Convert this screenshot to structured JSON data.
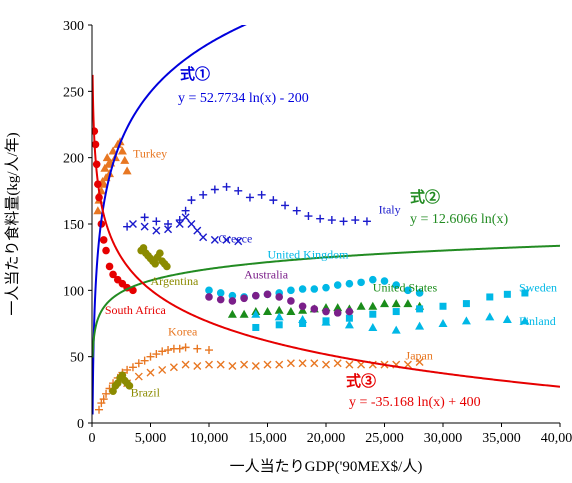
{
  "chart_data": {
    "type": "scatter",
    "xlabel": "一人当たりGDP('90MEX$/人)",
    "ylabel": "一人当たり食料量(kg/人/年)",
    "xlim": [
      0,
      40000
    ],
    "ylim": [
      0,
      300
    ],
    "x_ticks": [
      0,
      5000,
      10000,
      15000,
      20000,
      25000,
      30000,
      35000,
      40000
    ],
    "x_tick_labels": [
      "0",
      "5,000",
      "10,000",
      "15,000",
      "20,000",
      "25,000",
      "30,000",
      "35,000",
      "40,000"
    ],
    "y_ticks": [
      0,
      50,
      100,
      150,
      200,
      250,
      300
    ],
    "y_tick_labels": [
      "0",
      "50",
      "100",
      "150",
      "200",
      "250",
      "300"
    ],
    "grid": false,
    "legend": "none",
    "trend_lines": [
      {
        "label": "式①",
        "equation": "y = 52.7734 ln(x) - 200",
        "a": 52.7734,
        "b": -200,
        "color": "#0000dd"
      },
      {
        "label": "式②",
        "equation": "y = 12.6066 ln(x)",
        "a": 12.6066,
        "b": 0,
        "color": "#228b22"
      },
      {
        "label": "式③",
        "equation": "y = -35.168 ln(x) + 400",
        "a": -35.168,
        "b": 400,
        "color": "#e60000"
      }
    ],
    "series": [
      {
        "name": "Italy",
        "color": "#1a1acc",
        "marker": "plus",
        "points": [
          [
            3000,
            148
          ],
          [
            4500,
            155
          ],
          [
            5500,
            152
          ],
          [
            6500,
            150
          ],
          [
            7500,
            153
          ],
          [
            8000,
            160
          ],
          [
            8500,
            168
          ],
          [
            9500,
            172
          ],
          [
            10500,
            176
          ],
          [
            11500,
            178
          ],
          [
            12500,
            175
          ],
          [
            13500,
            170
          ],
          [
            14500,
            172
          ],
          [
            15500,
            168
          ],
          [
            16500,
            164
          ],
          [
            17500,
            160
          ],
          [
            18500,
            156
          ],
          [
            19500,
            154
          ],
          [
            20500,
            153
          ],
          [
            21500,
            152
          ],
          [
            22500,
            153
          ],
          [
            23500,
            152
          ]
        ]
      },
      {
        "name": "Greece",
        "color": "#1a1acc",
        "marker": "x",
        "points": [
          [
            3500,
            150
          ],
          [
            4500,
            148
          ],
          [
            5500,
            145
          ],
          [
            6500,
            146
          ],
          [
            7500,
            150
          ],
          [
            8000,
            155
          ],
          [
            8500,
            150
          ],
          [
            9000,
            145
          ],
          [
            9500,
            140
          ],
          [
            10500,
            138
          ],
          [
            11500,
            138
          ],
          [
            12500,
            137
          ]
        ]
      },
      {
        "name": "United Kingdom",
        "color": "#00b8e6",
        "marker": "circle",
        "points": [
          [
            10000,
            100
          ],
          [
            11000,
            98
          ],
          [
            12000,
            96
          ],
          [
            13000,
            95
          ],
          [
            14000,
            96
          ],
          [
            15000,
            97
          ],
          [
            16000,
            98
          ],
          [
            17000,
            100
          ],
          [
            18000,
            101
          ],
          [
            19000,
            101
          ],
          [
            20000,
            102
          ],
          [
            21000,
            104
          ],
          [
            22000,
            105
          ],
          [
            23000,
            106
          ],
          [
            24000,
            108
          ],
          [
            25000,
            107
          ],
          [
            26000,
            104
          ],
          [
            27000,
            100
          ],
          [
            28000,
            98
          ]
        ]
      },
      {
        "name": "United States",
        "color": "#1a8c1a",
        "marker": "triangle",
        "points": [
          [
            12000,
            82
          ],
          [
            13000,
            82
          ],
          [
            14000,
            84
          ],
          [
            15000,
            84
          ],
          [
            16000,
            85
          ],
          [
            17000,
            84
          ],
          [
            18000,
            85
          ],
          [
            19000,
            86
          ],
          [
            20000,
            87
          ],
          [
            21000,
            87
          ],
          [
            22000,
            86
          ],
          [
            23000,
            88
          ],
          [
            24000,
            88
          ],
          [
            25000,
            90
          ],
          [
            26000,
            90
          ],
          [
            27000,
            90
          ],
          [
            28000,
            88
          ]
        ]
      },
      {
        "name": "Sweden",
        "color": "#00b8e6",
        "marker": "square",
        "points": [
          [
            14000,
            72
          ],
          [
            16000,
            74
          ],
          [
            18000,
            75
          ],
          [
            20000,
            77
          ],
          [
            22000,
            79
          ],
          [
            24000,
            82
          ],
          [
            26000,
            84
          ],
          [
            28000,
            86
          ],
          [
            30000,
            88
          ],
          [
            32000,
            90
          ],
          [
            34000,
            95
          ],
          [
            35500,
            97
          ],
          [
            37000,
            98
          ]
        ]
      },
      {
        "name": "Finland",
        "color": "#00b8e6",
        "marker": "triangle",
        "points": [
          [
            14000,
            82
          ],
          [
            16000,
            80
          ],
          [
            18000,
            78
          ],
          [
            20000,
            76
          ],
          [
            22000,
            74
          ],
          [
            24000,
            72
          ],
          [
            26000,
            70
          ],
          [
            28000,
            73
          ],
          [
            30000,
            75
          ],
          [
            32000,
            77
          ],
          [
            34000,
            80
          ],
          [
            35500,
            78
          ],
          [
            37000,
            77
          ]
        ]
      },
      {
        "name": "Australia",
        "color": "#7b1f8a",
        "marker": "circle",
        "points": [
          [
            10000,
            95
          ],
          [
            11000,
            93
          ],
          [
            12000,
            92
          ],
          [
            13000,
            94
          ],
          [
            14000,
            96
          ],
          [
            15000,
            97
          ],
          [
            16000,
            95
          ],
          [
            17000,
            92
          ],
          [
            18000,
            88
          ],
          [
            19000,
            86
          ],
          [
            20000,
            84
          ],
          [
            21000,
            83
          ],
          [
            22000,
            84
          ]
        ]
      },
      {
        "name": "Japan",
        "color": "#e87722",
        "marker": "x",
        "points": [
          [
            3000,
            30
          ],
          [
            4000,
            35
          ],
          [
            5000,
            38
          ],
          [
            6000,
            40
          ],
          [
            7000,
            42
          ],
          [
            8000,
            44
          ],
          [
            9000,
            43
          ],
          [
            10000,
            44
          ],
          [
            11000,
            44
          ],
          [
            12000,
            43
          ],
          [
            13000,
            44
          ],
          [
            14000,
            43
          ],
          [
            15000,
            44
          ],
          [
            16000,
            44
          ],
          [
            17000,
            45
          ],
          [
            18000,
            45
          ],
          [
            19000,
            45
          ],
          [
            20000,
            44
          ],
          [
            21000,
            45
          ],
          [
            22000,
            44
          ],
          [
            23000,
            44
          ],
          [
            24000,
            44
          ],
          [
            25000,
            44
          ],
          [
            26000,
            44
          ],
          [
            27000,
            44
          ],
          [
            28000,
            46
          ]
        ]
      },
      {
        "name": "Korea",
        "color": "#e87722",
        "marker": "plus",
        "points": [
          [
            600,
            10
          ],
          [
            800,
            15
          ],
          [
            1000,
            18
          ],
          [
            1200,
            22
          ],
          [
            1500,
            26
          ],
          [
            1800,
            30
          ],
          [
            2200,
            34
          ],
          [
            2600,
            38
          ],
          [
            3000,
            40
          ],
          [
            3500,
            42
          ],
          [
            4000,
            45
          ],
          [
            4500,
            47
          ],
          [
            5000,
            50
          ],
          [
            5500,
            52
          ],
          [
            6000,
            54
          ],
          [
            6500,
            55
          ],
          [
            7000,
            56
          ],
          [
            7500,
            56
          ],
          [
            8000,
            57
          ],
          [
            9000,
            56
          ],
          [
            10000,
            55
          ]
        ]
      },
      {
        "name": "Turkey",
        "color": "#e87722",
        "marker": "triangle",
        "points": [
          [
            500,
            160
          ],
          [
            600,
            168
          ],
          [
            800,
            175
          ],
          [
            900,
            182
          ],
          [
            1000,
            180
          ],
          [
            1100,
            192
          ],
          [
            1200,
            185
          ],
          [
            1300,
            200
          ],
          [
            1400,
            195
          ],
          [
            1500,
            188
          ],
          [
            1600,
            196
          ],
          [
            1800,
            205
          ],
          [
            2000,
            200
          ],
          [
            2200,
            210
          ],
          [
            2400,
            212
          ],
          [
            2600,
            205
          ],
          [
            2800,
            198
          ],
          [
            3000,
            190
          ]
        ]
      },
      {
        "name": "Argentina",
        "color": "#8b8b00",
        "marker": "circle",
        "points": [
          [
            4200,
            130
          ],
          [
            4400,
            132
          ],
          [
            4600,
            128
          ],
          [
            4800,
            126
          ],
          [
            5000,
            124
          ],
          [
            5200,
            122
          ],
          [
            5400,
            120
          ],
          [
            5600,
            125
          ],
          [
            5800,
            128
          ],
          [
            6000,
            122
          ],
          [
            6200,
            120
          ],
          [
            6400,
            118
          ]
        ]
      },
      {
        "name": "South Africa",
        "color": "#e60000",
        "marker": "circle",
        "points": [
          [
            200,
            220
          ],
          [
            300,
            210
          ],
          [
            400,
            195
          ],
          [
            500,
            180
          ],
          [
            600,
            170
          ],
          [
            800,
            150
          ],
          [
            1000,
            138
          ],
          [
            1200,
            130
          ],
          [
            1500,
            118
          ],
          [
            1800,
            112
          ],
          [
            2200,
            108
          ],
          [
            2600,
            105
          ],
          [
            3000,
            102
          ],
          [
            3500,
            100
          ]
        ]
      },
      {
        "name": "Brazil",
        "color": "#8b8b00",
        "marker": "circle",
        "points": [
          [
            1800,
            24
          ],
          [
            2000,
            28
          ],
          [
            2200,
            30
          ],
          [
            2400,
            34
          ],
          [
            2600,
            36
          ],
          [
            2800,
            32
          ],
          [
            3000,
            30
          ],
          [
            3200,
            28
          ]
        ]
      }
    ],
    "annotations": [
      {
        "text": "Turkey",
        "color": "#e87722",
        "x": 3500,
        "y": 200
      },
      {
        "text": "Italy",
        "color": "#1a1acc",
        "x": 24500,
        "y": 158
      },
      {
        "text": "Greece",
        "color": "#1a1acc",
        "x": 10800,
        "y": 136
      },
      {
        "text": "United Kingdom",
        "color": "#00b8e6",
        "x": 15000,
        "y": 124
      },
      {
        "text": "Australia",
        "color": "#7b1f8a",
        "x": 13000,
        "y": 109
      },
      {
        "text": "Argentina",
        "color": "#8b8b00",
        "x": 5000,
        "y": 104
      },
      {
        "text": "United States",
        "color": "#1a8c1a",
        "x": 24000,
        "y": 99
      },
      {
        "text": "Sweden",
        "color": "#00b8e6",
        "x": 36500,
        "y": 99
      },
      {
        "text": "Finland",
        "color": "#00b8e6",
        "x": 36500,
        "y": 74
      },
      {
        "text": "South Africa",
        "color": "#e60000",
        "x": 1100,
        "y": 82
      },
      {
        "text": "Korea",
        "color": "#e87722",
        "x": 6500,
        "y": 66
      },
      {
        "text": "Japan",
        "color": "#e87722",
        "x": 26800,
        "y": 48
      },
      {
        "text": "Brazil",
        "color": "#8b8b00",
        "x": 3300,
        "y": 20
      }
    ]
  }
}
